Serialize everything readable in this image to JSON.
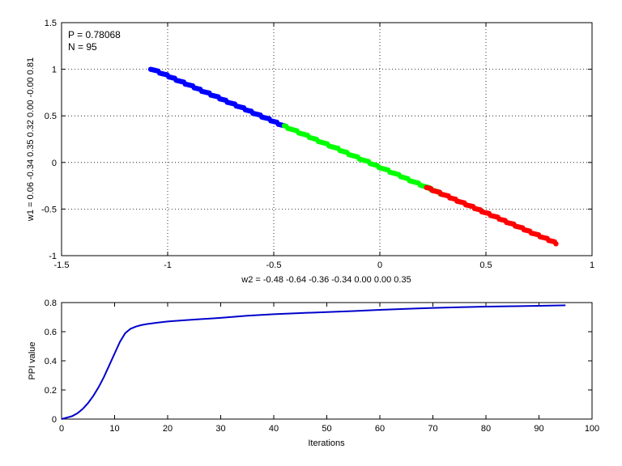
{
  "chart_data": [
    {
      "type": "scatter",
      "title": "",
      "xlabel": "w2 = -0.48  -0.64  -0.36  -0.34  0.00  0.00  0.35",
      "ylabel": "w1 = 0.06  -0.34  0.35  0.32  0.00  -0.00  0.81",
      "xlim": [
        -1.5,
        1
      ],
      "ylim": [
        -1,
        1.5
      ],
      "xticks": [
        -1.5,
        -1,
        -0.5,
        0,
        0.5,
        1
      ],
      "yticks": [
        -1,
        -0.5,
        0,
        0.5,
        1,
        1.5
      ],
      "grid": true,
      "annotations": [
        "P = 0.78068",
        "N = 95"
      ],
      "colors": {
        "blue": "#0000ff",
        "green": "#00ff00",
        "red": "#ff0000"
      },
      "series": [
        {
          "color": "blue",
          "x_range": [
            -1.08,
            -0.45
          ],
          "line": {
            "slope": -0.98,
            "intercept": -0.05
          }
        },
        {
          "color": "green",
          "x_range": [
            -0.45,
            0.3
          ],
          "line": {
            "slope": -0.98,
            "intercept": -0.05
          }
        },
        {
          "color": "red",
          "x_range": [
            0.22,
            0.83
          ],
          "line": {
            "slope": -0.98,
            "intercept": -0.05
          }
        }
      ]
    },
    {
      "type": "line",
      "title": "",
      "xlabel": "Iterations",
      "ylabel": "PPI value",
      "xlim": [
        0,
        100
      ],
      "ylim": [
        0,
        0.8
      ],
      "xticks": [
        0,
        10,
        20,
        30,
        40,
        50,
        60,
        70,
        80,
        90,
        100
      ],
      "yticks": [
        0,
        0.2,
        0.4,
        0.6,
        0.8
      ],
      "grid": false,
      "line_color": "#0000cc",
      "x": [
        0,
        1,
        2,
        3,
        4,
        5,
        6,
        7,
        8,
        9,
        10,
        11,
        12,
        13,
        14,
        15,
        16,
        18,
        20,
        22,
        25,
        30,
        35,
        40,
        45,
        50,
        55,
        60,
        65,
        70,
        75,
        80,
        85,
        90,
        95
      ],
      "y": [
        0.0,
        0.01,
        0.02,
        0.04,
        0.07,
        0.11,
        0.16,
        0.22,
        0.29,
        0.37,
        0.45,
        0.53,
        0.59,
        0.62,
        0.635,
        0.645,
        0.652,
        0.662,
        0.67,
        0.676,
        0.683,
        0.695,
        0.71,
        0.72,
        0.728,
        0.735,
        0.742,
        0.75,
        0.757,
        0.763,
        0.768,
        0.772,
        0.775,
        0.778,
        0.781
      ]
    }
  ]
}
